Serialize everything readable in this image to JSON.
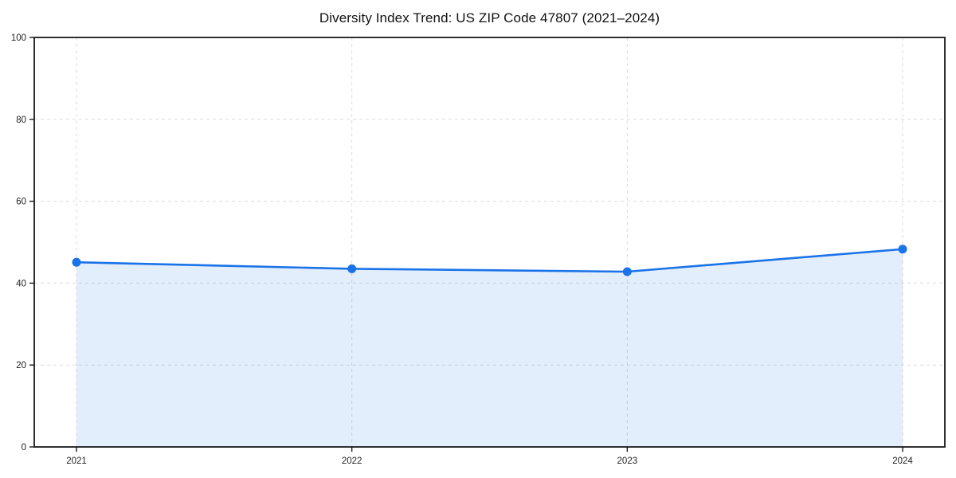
{
  "chart_data": {
    "type": "area",
    "title": "Diversity Index Trend: US ZIP Code 47807 (2021–2024)",
    "x": [
      2021,
      2022,
      2023,
      2024
    ],
    "values": [
      45.1,
      43.5,
      42.8,
      48.3
    ],
    "xlabel": "",
    "ylabel": "",
    "ylim": [
      0,
      100
    ],
    "yticks": [
      0,
      20,
      40,
      60,
      80,
      100
    ],
    "grid": true,
    "grid_style": "dashed",
    "legend": "none",
    "marker": "circle",
    "colors": {
      "line": "#1a73e8",
      "fill": "rgba(26,115,232,0.12)",
      "grid": "#dcdcdc",
      "spine": "#1a1a1a",
      "tick_label": "#222222",
      "title": "#111111",
      "background": "#ffffff"
    }
  }
}
